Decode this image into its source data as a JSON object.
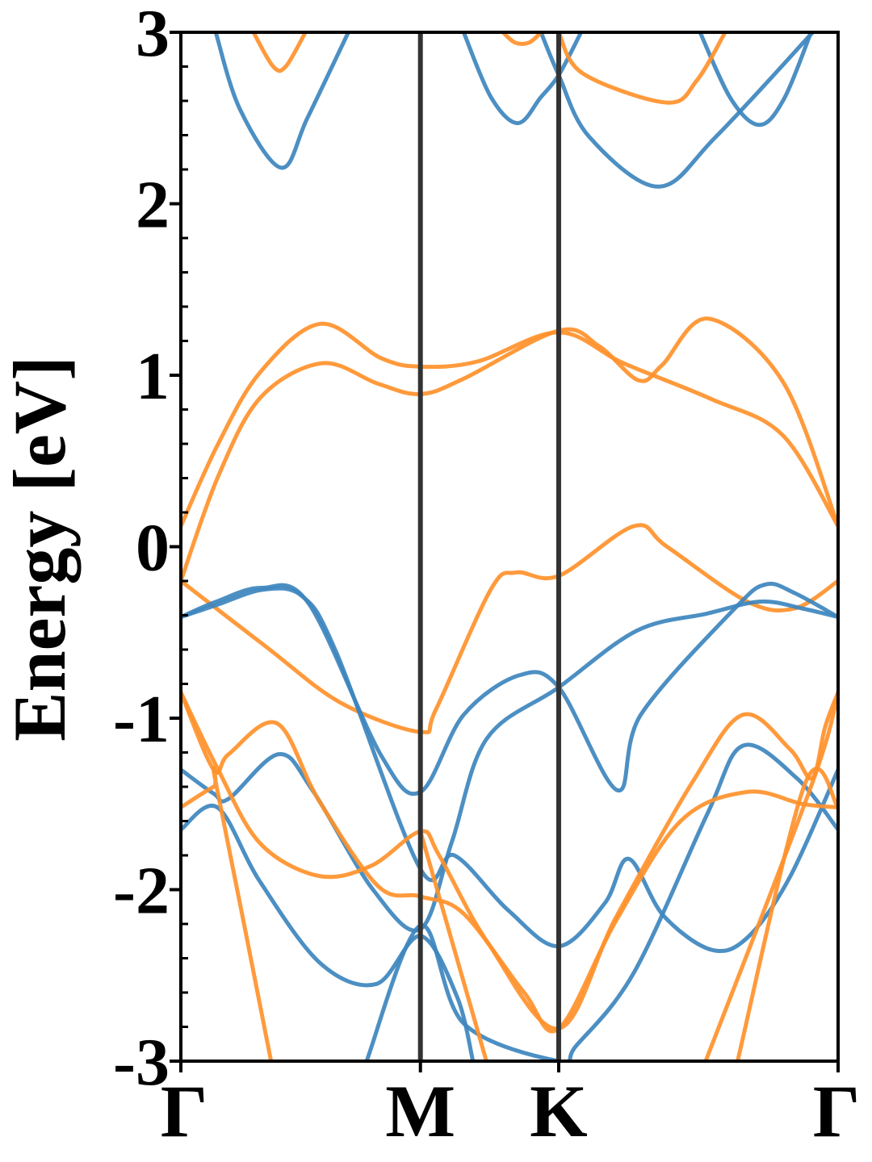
{
  "chart_data": {
    "type": "line",
    "title": "",
    "xlabel": "",
    "ylabel": "Energy [eV]",
    "ylim": [
      -3,
      3
    ],
    "yticks": [
      "3",
      "2",
      "1",
      "0",
      "-1",
      "-2",
      "-3"
    ],
    "ytick_values": [
      3,
      2,
      1,
      0,
      -1,
      -2,
      -3
    ],
    "xlim": [
      0,
      1
    ],
    "high_symmetry_points": [
      {
        "label": "Γ",
        "x": 0.0
      },
      {
        "label": "M",
        "x": 0.3645
      },
      {
        "label": "K",
        "x": 0.5749
      },
      {
        "label": "Γ",
        "x": 1.0
      }
    ],
    "grid": false,
    "legend": "none",
    "colors": {
      "blue": "#3d85be",
      "orange": "#ff912b",
      "vline": "#333333"
    },
    "series": [
      {
        "color": "blue",
        "points": [
          [
            0.0531,
            3.0
          ],
          [
            0.09,
            2.55
          ],
          [
            0.153,
            2.21
          ],
          [
            0.1925,
            2.5
          ],
          [
            0.2549,
            3.0
          ]
        ]
      },
      {
        "color": "blue",
        "points": [
          [
            0.4303,
            3.0
          ],
          [
            0.4721,
            2.62
          ],
          [
            0.5129,
            2.47
          ],
          [
            0.5474,
            2.62
          ],
          [
            0.5749,
            2.75
          ],
          [
            0.609,
            3.0
          ]
        ]
      },
      {
        "color": "blue",
        "points": [
          [
            0.5479,
            3.0
          ],
          [
            0.5749,
            2.75
          ],
          [
            0.6214,
            2.39
          ],
          [
            0.726,
            2.1
          ],
          [
            0.8139,
            2.39
          ],
          [
            0.9614,
            3.0
          ]
        ]
      },
      {
        "color": "blue",
        "points": [
          [
            0.7899,
            3.0
          ],
          [
            0.8372,
            2.61
          ],
          [
            0.8803,
            2.46
          ],
          [
            0.9175,
            2.61
          ],
          [
            0.9588,
            3.0
          ]
        ]
      },
      {
        "color": "orange",
        "points": [
          [
            0.1105,
            3.0
          ],
          [
            0.1405,
            2.8
          ],
          [
            0.1595,
            2.8
          ],
          [
            0.1895,
            3.0
          ]
        ]
      },
      {
        "color": "orange",
        "points": [
          [
            0.4899,
            3.0
          ],
          [
            0.5085,
            2.94
          ],
          [
            0.5297,
            2.94
          ],
          [
            0.5483,
            3.0
          ]
        ]
      },
      {
        "color": "orange",
        "points": [
          [
            0.5749,
            3.0
          ],
          [
            0.6115,
            2.76
          ],
          [
            0.7397,
            2.59
          ],
          [
            0.7852,
            2.72
          ],
          [
            0.8282,
            3.0
          ]
        ]
      },
      {
        "color": "orange",
        "points": [
          [
            0.0,
            0.12
          ],
          [
            0.0567,
            0.6
          ],
          [
            0.1212,
            1.02
          ],
          [
            0.2124,
            1.3
          ],
          [
            0.3045,
            1.1
          ],
          [
            0.3645,
            1.05
          ],
          [
            0.4512,
            1.08
          ],
          [
            0.5749,
            1.25
          ],
          [
            0.6734,
            1.07
          ],
          [
            0.8079,
            0.86
          ],
          [
            0.9158,
            0.65
          ],
          [
            1.0,
            0.12
          ]
        ]
      },
      {
        "color": "orange",
        "points": [
          [
            0.0,
            -0.2
          ],
          [
            0.0567,
            0.41
          ],
          [
            0.1212,
            0.87
          ],
          [
            0.2148,
            1.07
          ],
          [
            0.3002,
            0.95
          ],
          [
            0.3645,
            0.89
          ],
          [
            0.4303,
            0.98
          ],
          [
            0.5749,
            1.26
          ],
          [
            0.6363,
            1.17
          ],
          [
            0.6967,
            0.97
          ],
          [
            0.7324,
            1.06
          ],
          [
            0.803,
            1.33
          ],
          [
            0.9164,
            0.96
          ],
          [
            1.0,
            0.12
          ]
        ]
      },
      {
        "color": "orange",
        "points": [
          [
            0.0,
            -0.2
          ],
          [
            0.1286,
            -0.58
          ],
          [
            0.2432,
            -0.91
          ],
          [
            0.3645,
            -1.08
          ],
          [
            0.388,
            -0.95
          ],
          [
            0.4715,
            -0.25
          ],
          [
            0.5098,
            -0.15
          ],
          [
            0.5749,
            -0.17
          ],
          [
            0.6893,
            0.12
          ],
          [
            0.7397,
            0.0
          ],
          [
            0.8619,
            -0.32
          ],
          [
            0.9336,
            -0.36
          ],
          [
            1.0,
            -0.2
          ]
        ]
      },
      {
        "color": "blue",
        "points": [
          [
            0.0,
            -0.41
          ],
          [
            0.0543,
            -0.32
          ],
          [
            0.1224,
            -0.24
          ],
          [
            0.1942,
            -0.33
          ],
          [
            0.3051,
            -1.22
          ],
          [
            0.3645,
            -1.43
          ],
          [
            0.4303,
            -0.98
          ],
          [
            0.5147,
            -0.75
          ],
          [
            0.5749,
            -0.82
          ],
          [
            0.6641,
            -1.42
          ],
          [
            0.6997,
            -0.98
          ],
          [
            0.8403,
            -0.37
          ],
          [
            0.8895,
            -0.22
          ],
          [
            0.9336,
            -0.27
          ],
          [
            1.0,
            -0.41
          ]
        ]
      },
      {
        "color": "blue",
        "points": [
          [
            0.0,
            -0.41
          ],
          [
            0.0543,
            -0.34
          ],
          [
            0.1262,
            -0.25
          ],
          [
            0.185,
            -0.29
          ],
          [
            0.237,
            -0.62
          ],
          [
            0.3645,
            -1.88
          ],
          [
            0.4161,
            -1.8
          ],
          [
            0.498,
            -2.12
          ],
          [
            0.5749,
            -2.33
          ],
          [
            0.6449,
            -2.08
          ],
          [
            0.6813,
            -1.82
          ],
          [
            0.734,
            -2.15
          ],
          [
            0.8069,
            -2.35
          ],
          [
            0.8619,
            -2.28
          ],
          [
            0.9262,
            -1.93
          ],
          [
            1.0,
            -1.3
          ]
        ]
      },
      {
        "color": "blue",
        "points": [
          [
            0.0,
            -1.3
          ],
          [
            0.05,
            -1.44
          ],
          [
            0.0727,
            -1.47
          ],
          [
            0.1489,
            -1.21
          ],
          [
            0.2003,
            -1.42
          ],
          [
            0.2924,
            -2.0
          ],
          [
            0.3645,
            -2.23
          ],
          [
            0.4124,
            -1.72
          ],
          [
            0.4654,
            -1.12
          ],
          [
            0.5749,
            -0.82
          ],
          [
            0.6936,
            -0.49
          ],
          [
            0.8005,
            -0.39
          ],
          [
            0.8821,
            -0.32
          ],
          [
            0.9453,
            -0.36
          ],
          [
            1.0,
            -0.41
          ]
        ]
      },
      {
        "color": "blue",
        "points": [
          [
            0.0,
            -1.65
          ],
          [
            0.0555,
            -1.52
          ],
          [
            0.1199,
            -1.95
          ],
          [
            0.2124,
            -2.43
          ],
          [
            0.2973,
            -2.55
          ],
          [
            0.3645,
            -2.27
          ],
          [
            0.4198,
            -2.62
          ],
          [
            0.4445,
            -3.0
          ]
        ]
      },
      {
        "color": "blue",
        "points": [
          [
            0.2826,
            -3.0
          ],
          [
            0.3645,
            -2.21
          ],
          [
            0.4303,
            -2.78
          ],
          [
            0.5749,
            -3.0
          ],
          [
            0.6016,
            -2.91
          ],
          [
            0.6899,
            -2.48
          ],
          [
            0.8008,
            -1.56
          ],
          [
            0.8555,
            -1.16
          ],
          [
            0.9372,
            -1.35
          ],
          [
            1.0,
            -1.65
          ]
        ]
      },
      {
        "color": "orange",
        "points": [
          [
            0.0,
            -0.85
          ],
          [
            0.0567,
            -1.3
          ],
          [
            0.1206,
            -1.73
          ],
          [
            0.21,
            -1.92
          ],
          [
            0.2899,
            -1.86
          ],
          [
            0.3645,
            -1.66
          ],
          [
            0.393,
            -1.8
          ],
          [
            0.4672,
            -2.31
          ],
          [
            0.5749,
            -2.81
          ],
          [
            0.6623,
            -2.16
          ],
          [
            0.7789,
            -1.37
          ],
          [
            0.8553,
            -0.98
          ],
          [
            0.9266,
            -1.18
          ],
          [
            0.9605,
            -1.35
          ],
          [
            0.9803,
            -1.05
          ],
          [
            1.0,
            -0.85
          ]
        ]
      },
      {
        "color": "orange",
        "points": [
          [
            0.0,
            -0.85
          ],
          [
            0.05,
            -1.3
          ],
          [
            0.0727,
            -1.21
          ],
          [
            0.1462,
            -1.03
          ],
          [
            0.21,
            -1.48
          ],
          [
            0.3002,
            -1.98
          ],
          [
            0.3645,
            -2.04
          ],
          [
            0.4303,
            -2.14
          ],
          [
            0.5222,
            -2.6
          ],
          [
            0.5749,
            -2.81
          ],
          [
            0.6623,
            -2.18
          ],
          [
            0.7604,
            -1.6
          ],
          [
            0.8619,
            -1.43
          ],
          [
            0.9453,
            -1.5
          ],
          [
            1.0,
            -1.52
          ]
        ]
      },
      {
        "color": "orange",
        "points": [
          [
            0.0,
            -1.52
          ],
          [
            0.05,
            -1.4
          ],
          [
            0.0555,
            -1.42
          ],
          [
            0.1372,
            -3.0
          ]
        ]
      },
      {
        "color": "orange",
        "points": [
          [
            0.3645,
            -1.66
          ],
          [
            0.4649,
            -3.0
          ]
        ]
      },
      {
        "color": "orange",
        "points": [
          [
            0.7985,
            -3.0
          ],
          [
            0.9606,
            -1.38
          ],
          [
            1.0,
            -0.85
          ]
        ]
      },
      {
        "color": "orange",
        "points": [
          [
            0.847,
            -3.0
          ],
          [
            0.9499,
            -1.38
          ],
          [
            1.0,
            -1.52
          ]
        ]
      }
    ]
  }
}
